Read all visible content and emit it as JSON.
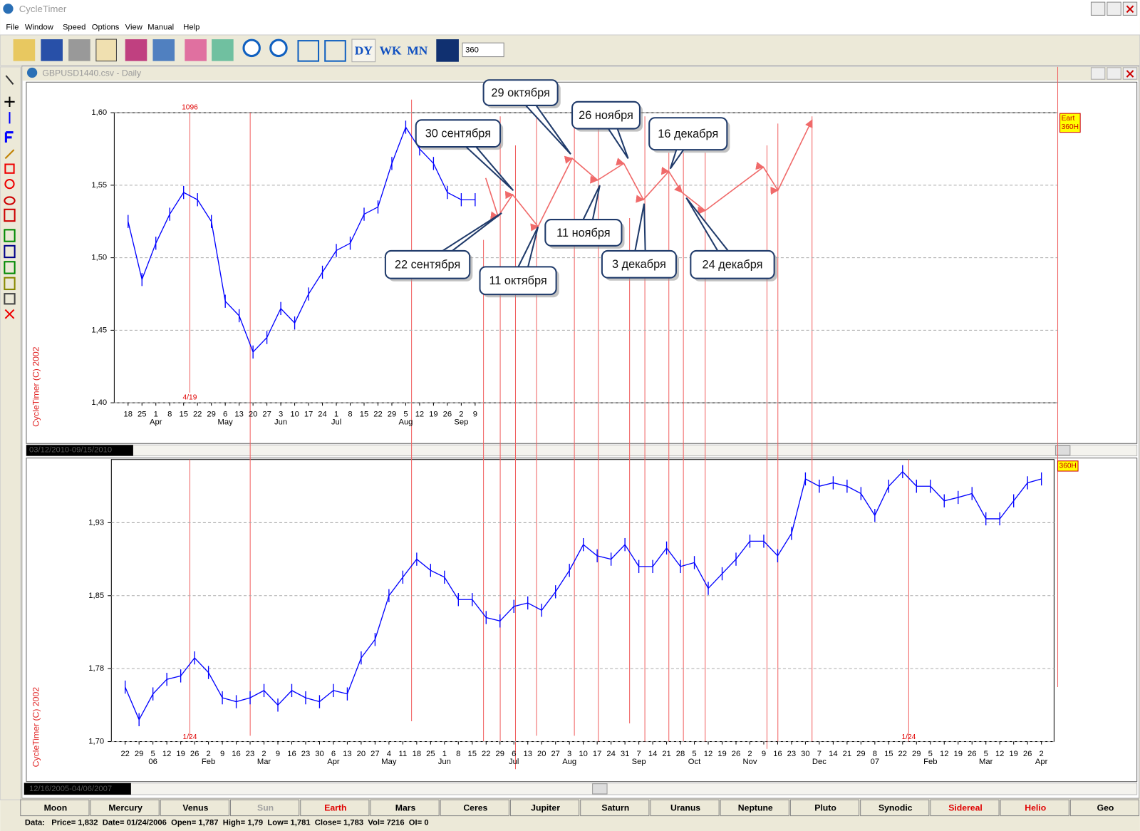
{
  "window": {
    "title": "CycleTimer"
  },
  "menu": [
    "File",
    "Window",
    "Speed",
    "Options",
    "View",
    "Manual",
    "Help"
  ],
  "toolbar": {
    "buttons": [
      "DY",
      "WK",
      "MN"
    ],
    "input": "360"
  },
  "document": {
    "title": "GBPUSD1440.csv - Daily"
  },
  "tabs": [
    {
      "label": "Moon"
    },
    {
      "label": "Mercury"
    },
    {
      "label": "Venus"
    },
    {
      "label": "Sun",
      "color": "#a0a0a0"
    },
    {
      "label": "Earth",
      "color": "#e00000"
    },
    {
      "label": "Mars"
    },
    {
      "label": "Ceres"
    },
    {
      "label": "Jupiter"
    },
    {
      "label": "Saturn"
    },
    {
      "label": "Uranus"
    },
    {
      "label": "Neptune"
    },
    {
      "label": "Pluto"
    },
    {
      "label": "Synodic"
    },
    {
      "label": "Sidereal",
      "color": "#e00000"
    },
    {
      "label": "Helio",
      "color": "#e00000"
    },
    {
      "label": "Geo"
    }
  ],
  "status": "Data:   Price= 1,832  Date= 01/24/2006  Open= 1,787  High= 1,79  Low= 1,781  Close= 1,783  Vol= 7216  OI= 0",
  "chart_data": [
    {
      "type": "line",
      "watermark": "CycleTimer (C) 2002",
      "categories": [
        "18",
        "25",
        "1",
        "8",
        "15",
        "22",
        "29",
        "6",
        "13",
        "20",
        "27",
        "3",
        "10",
        "17",
        "24",
        "1",
        "8",
        "15",
        "22",
        "29",
        "5",
        "12",
        "19",
        "26",
        "2",
        "9"
      ],
      "month_labels": [
        null,
        null,
        "Apr",
        null,
        null,
        null,
        null,
        "May",
        null,
        null,
        null,
        "Jun",
        null,
        null,
        null,
        "Jul",
        null,
        null,
        null,
        null,
        "Aug",
        null,
        null,
        null,
        "Sep",
        null
      ],
      "values": [
        1.525,
        1.485,
        1.51,
        1.53,
        1.545,
        1.54,
        1.525,
        1.47,
        1.46,
        1.435,
        1.445,
        1.465,
        1.455,
        1.475,
        1.49,
        1.505,
        1.51,
        1.53,
        1.535,
        1.565,
        1.59,
        1.575,
        1.565,
        1.545,
        1.54,
        1.54
      ],
      "color": "#0000ff",
      "ylim": [
        1.4,
        1.6
      ],
      "yticks": [
        {
          "value": 1.4,
          "label": "1,40"
        },
        {
          "value": 1.45,
          "label": "1,45"
        },
        {
          "value": 1.5,
          "label": "1,50"
        },
        {
          "value": 1.55,
          "label": "1,55"
        },
        {
          "value": 1.6,
          "label": "1,60"
        }
      ],
      "grid": true,
      "cycle_labels": [
        "1096",
        "4/19"
      ],
      "badge": [
        "Eart",
        "360H"
      ],
      "range_label": "03/12/2010-09/15/2010",
      "projection": {
        "x": [
          25.76,
          26.65,
          27.7,
          29.53,
          31.99,
          33.82,
          35.71,
          37.12,
          38.95,
          39.9,
          41.57,
          45.76,
          46.81,
          49.27
        ],
        "values": [
          1.555,
          1.5285,
          1.5435,
          1.5215,
          1.5685,
          1.5535,
          1.565,
          1.54,
          1.5595,
          1.545,
          1.5325,
          1.5625,
          1.5465,
          1.595
        ],
        "color": "#f06a6a"
      },
      "annotations": [
        "29 октября",
        "30 сентября",
        "26 ноября",
        "16 декабря",
        "22 сентября",
        "11 октября",
        "11 ноября",
        "3 декабря",
        "24 декабря"
      ]
    },
    {
      "type": "line",
      "watermark": "CycleTimer (C) 2002",
      "categories": [
        "22",
        "29",
        "5",
        "12",
        "19",
        "26",
        "2",
        "9",
        "16",
        "23",
        "2",
        "9",
        "16",
        "23",
        "30",
        "6",
        "13",
        "20",
        "27",
        "4",
        "11",
        "18",
        "25",
        "1",
        "8",
        "15",
        "22",
        "29",
        "6",
        "13",
        "20",
        "27",
        "3",
        "10",
        "17",
        "24",
        "31",
        "7",
        "14",
        "21",
        "28",
        "5",
        "12",
        "19",
        "26",
        "2",
        "9",
        "16",
        "23",
        "30",
        "7",
        "14",
        "21",
        "29",
        "8",
        "15",
        "22",
        "29",
        "5",
        "12",
        "19",
        "26",
        "5",
        "12",
        "19",
        "26",
        "2"
      ],
      "month_labels": [
        null,
        null,
        "06",
        null,
        null,
        null,
        "Feb",
        null,
        null,
        null,
        "Mar",
        null,
        null,
        null,
        null,
        "Apr",
        null,
        null,
        null,
        "May",
        null,
        null,
        null,
        "Jun",
        null,
        null,
        null,
        null,
        "Jul",
        null,
        null,
        null,
        "Aug",
        null,
        null,
        null,
        null,
        "Sep",
        null,
        null,
        null,
        "Oct",
        null,
        null,
        null,
        "Nov",
        null,
        null,
        null,
        null,
        "Dec",
        null,
        null,
        null,
        "07",
        null,
        null,
        null,
        "Feb",
        null,
        null,
        null,
        "Mar",
        null,
        null,
        null,
        "Apr"
      ],
      "values": [
        1.756,
        1.7225,
        1.749,
        1.764,
        1.7675,
        1.786,
        1.771,
        1.745,
        1.741,
        1.745,
        1.7525,
        1.7375,
        1.7525,
        1.745,
        1.741,
        1.7525,
        1.749,
        1.786,
        1.805,
        1.85,
        1.869,
        1.8875,
        1.876,
        1.869,
        1.846,
        1.846,
        1.8275,
        1.824,
        1.839,
        1.8425,
        1.835,
        1.854,
        1.876,
        1.9025,
        1.891,
        1.8875,
        1.9025,
        1.88,
        1.88,
        1.899,
        1.88,
        1.884,
        1.8575,
        1.8725,
        1.8875,
        1.906,
        1.906,
        1.891,
        1.914,
        1.97,
        1.9625,
        1.966,
        1.9625,
        1.955,
        1.9325,
        1.9625,
        1.9775,
        1.9625,
        1.9625,
        1.9475,
        1.951,
        1.955,
        1.929,
        1.929,
        1.9475,
        1.966,
        1.97
      ],
      "color": "#0000ff",
      "ylim": [
        1.7,
        1.99
      ],
      "yticks": [
        {
          "value": 1.7,
          "label": "1,70"
        },
        {
          "value": 1.775,
          "label": "1,78"
        },
        {
          "value": 1.85,
          "label": "1,85"
        },
        {
          "value": 1.925,
          "label": "1,93"
        }
      ],
      "grid": true,
      "cycle_labels": [
        "1/24",
        "1/24"
      ],
      "badge": [
        "360H"
      ],
      "range_label": "12/16/2005-04/06/2007"
    }
  ]
}
